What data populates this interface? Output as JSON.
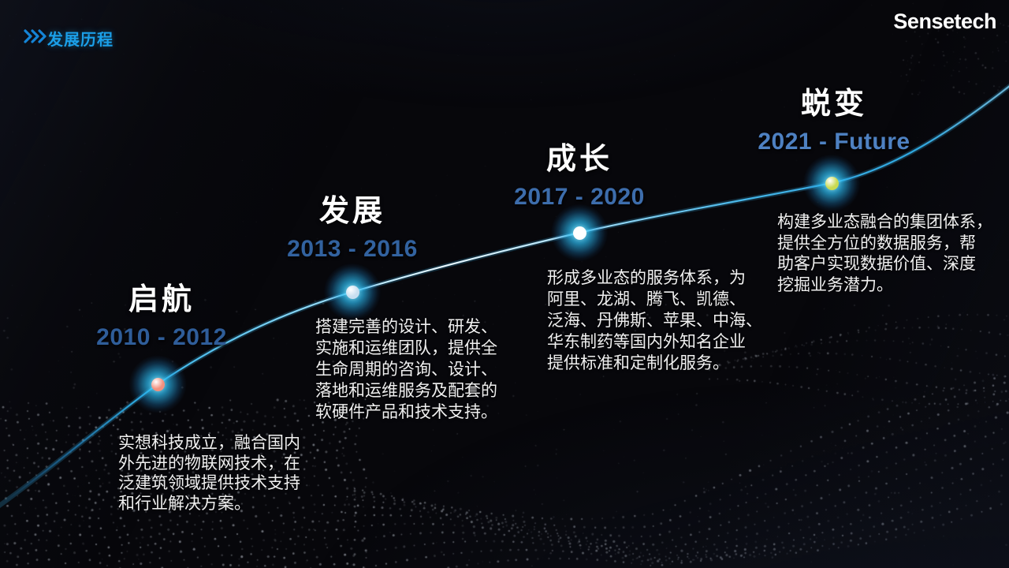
{
  "header": {
    "title": "发展历程",
    "chevrons_icon": "triple-chevron-right",
    "title_color": "#1b9fe8",
    "chevron_color": "#1584d6"
  },
  "logo": {
    "text": "Sensetech",
    "color": "#ffffff"
  },
  "theme": {
    "background": "#07070b",
    "line_cyan": "#2fb3e8",
    "line_highlight": "#e8f7ff",
    "glow_cyan": "#2cbaf0",
    "text_white": "#f0f0f0"
  },
  "milestones": [
    {
      "title": "启航",
      "period": "2010 - 2012",
      "period_color": "#2f5d99",
      "dot_color": "#f2907e",
      "lines": [
        "实想科技成立，融合国内",
        "外先进的物联网技术，在",
        "泛建筑领域提供技术支持",
        "和行业解决方案。"
      ]
    },
    {
      "title": "发展",
      "period": "2013 - 2016",
      "period_color": "#32629f",
      "dot_color": "#c8dff0",
      "lines": [
        "搭建完善的设计、研发、",
        "实施和运维团队，提供全",
        "生命周期的咨询、设计、",
        "落地和运维服务及配套的",
        "软硬件产品和技术支持。"
      ]
    },
    {
      "title": "成长",
      "period": "2017 - 2020",
      "period_color": "#3d6dac",
      "dot_color": "#ffffff",
      "lines": [
        "形成多业态的服务体系，为",
        "阿里、龙湖、腾飞、凯德、",
        "泛海、丹佛斯、苹果、中海、",
        "华东制药等国内外知名企业",
        "提供标准和定制化服务。"
      ]
    },
    {
      "title": "蜕变",
      "period": "2021 - Future",
      "period_color": "#4e81c2",
      "dot_color": "#c9da52",
      "lines": [
        "构建多业态融合的集团体系，",
        "提供全方位的数据服务，帮",
        "助客户实现数据价值、深度",
        "挖掘业务潜力。"
      ]
    }
  ]
}
